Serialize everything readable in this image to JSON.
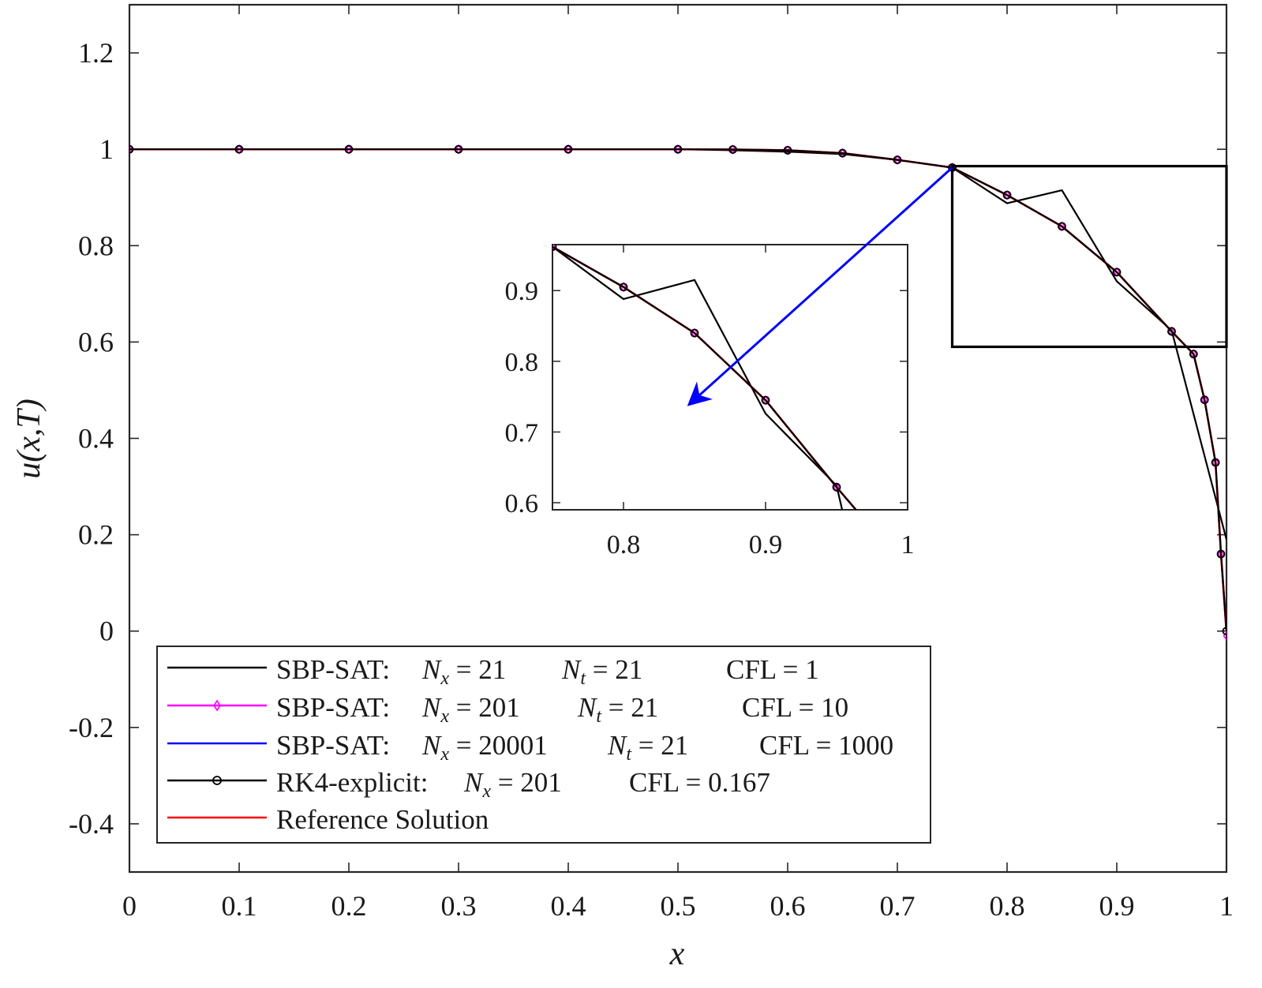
{
  "chart_data": {
    "type": "line",
    "xlabel": "x",
    "ylabel": "u(x,T)",
    "xlim": [
      0,
      1
    ],
    "ylim": [
      -0.5,
      1.3
    ],
    "xticks": [
      "0",
      "0.1",
      "0.2",
      "0.3",
      "0.4",
      "0.5",
      "0.6",
      "0.7",
      "0.8",
      "0.9",
      "1"
    ],
    "yticks": [
      "-0.4",
      "-0.2",
      "0",
      "0.2",
      "0.4",
      "0.6",
      "0.8",
      "1",
      "1.2"
    ],
    "legend_position": "bottom-left",
    "series": [
      {
        "name": "SBP-SAT: N_x = 21   N_t = 21   CFL = 1",
        "color": "#000000",
        "marker": "none",
        "x": [
          0,
          0.05,
          0.1,
          0.15,
          0.2,
          0.25,
          0.3,
          0.35,
          0.4,
          0.45,
          0.5,
          0.55,
          0.6,
          0.65,
          0.7,
          0.75,
          0.8,
          0.85,
          0.9,
          0.95,
          1.0
        ],
        "y": [
          1.0,
          1.0,
          1.0,
          1.0,
          1.0,
          1.0,
          1.0,
          1.0,
          1.0,
          1.0,
          1.0,
          0.998,
          0.995,
          0.99,
          0.978,
          0.962,
          0.888,
          0.915,
          0.726,
          0.624,
          0.19
        ]
      },
      {
        "name": "SBP-SAT: N_x = 201   N_t = 21   CFL = 10",
        "color": "#ff00ff",
        "marker": "diamond",
        "x": [
          0,
          0.1,
          0.2,
          0.3,
          0.4,
          0.5,
          0.55,
          0.6,
          0.65,
          0.7,
          0.75,
          0.8,
          0.85,
          0.9,
          0.95,
          0.97,
          0.98,
          0.99,
          0.995,
          1.0
        ],
        "y": [
          1.0,
          1.0,
          1.0,
          1.0,
          1.0,
          1.0,
          0.9995,
          0.998,
          0.992,
          0.978,
          0.962,
          0.905,
          0.84,
          0.745,
          0.622,
          0.575,
          0.48,
          0.35,
          0.16,
          -0.01
        ]
      },
      {
        "name": "SBP-SAT: N_x = 20001   N_t = 21   CFL = 1000",
        "color": "#0000ff",
        "marker": "none",
        "x": [
          0,
          0.1,
          0.2,
          0.3,
          0.4,
          0.5,
          0.55,
          0.6,
          0.65,
          0.7,
          0.75,
          0.8,
          0.85,
          0.9,
          0.95,
          0.97,
          0.98,
          0.99,
          0.995,
          1.0
        ],
        "y": [
          1.0,
          1.0,
          1.0,
          1.0,
          1.0,
          1.0,
          0.9995,
          0.998,
          0.992,
          0.978,
          0.962,
          0.905,
          0.84,
          0.745,
          0.622,
          0.575,
          0.48,
          0.35,
          0.16,
          0.0
        ]
      },
      {
        "name": "RK4-explicit: N_x = 201   CFL = 0.167",
        "color": "#000000",
        "marker": "circle",
        "x": [
          0,
          0.1,
          0.2,
          0.3,
          0.4,
          0.5,
          0.55,
          0.6,
          0.65,
          0.7,
          0.75,
          0.8,
          0.85,
          0.9,
          0.95,
          0.97,
          0.98,
          0.99,
          0.995,
          1.0
        ],
        "y": [
          1.0,
          1.0,
          1.0,
          1.0,
          1.0,
          1.0,
          0.9995,
          0.998,
          0.992,
          0.978,
          0.962,
          0.905,
          0.84,
          0.745,
          0.622,
          0.575,
          0.48,
          0.35,
          0.16,
          0.0
        ]
      },
      {
        "name": "Reference Solution",
        "color": "#ff0000",
        "marker": "none",
        "x": [
          0,
          0.1,
          0.2,
          0.3,
          0.4,
          0.5,
          0.55,
          0.6,
          0.65,
          0.7,
          0.75,
          0.8,
          0.85,
          0.9,
          0.95,
          0.97,
          0.98,
          0.99,
          0.995,
          1.0
        ],
        "y": [
          1.0,
          1.0,
          1.0,
          1.0,
          1.0,
          1.0,
          0.9995,
          0.998,
          0.992,
          0.978,
          0.962,
          0.905,
          0.84,
          0.745,
          0.622,
          0.575,
          0.48,
          0.35,
          0.16,
          0.0
        ]
      }
    ],
    "zoom_box": {
      "x": [
        0.75,
        1.0
      ],
      "y": [
        0.59,
        0.965
      ]
    },
    "inset": {
      "xlim": [
        0.75,
        1.0
      ],
      "ylim": [
        0.59,
        0.965
      ],
      "xticks": [
        "0.8",
        "0.9",
        "1"
      ],
      "yticks": [
        "0.6",
        "0.7",
        "0.8",
        "0.9"
      ],
      "x_tick_values": [
        0.8,
        0.9,
        1.0
      ],
      "y_tick_values": [
        0.6,
        0.7,
        0.8,
        0.9
      ]
    },
    "annotation": {
      "type": "arrow",
      "color": "#0000ff",
      "from": [
        0.75,
        0.962
      ],
      "to": [
        0.51,
        0.47
      ]
    }
  },
  "legend": {
    "rows": [
      {
        "prefix": "SBP-SAT: ",
        "nx": "N",
        "nx_sub": "x",
        "nx_val": " = 21",
        "nt": "N",
        "nt_sub": "t",
        "nt_val": " = 21",
        "cfl": "CFL = 1"
      },
      {
        "prefix": "SBP-SAT: ",
        "nx": "N",
        "nx_sub": "x",
        "nx_val": " = 201",
        "nt": "N",
        "nt_sub": "t",
        "nt_val": " = 21",
        "cfl": "CFL = 10"
      },
      {
        "prefix": "SBP-SAT: ",
        "nx": "N",
        "nx_sub": "x",
        "nx_val": " = 20001",
        "nt": "N",
        "nt_sub": "t",
        "nt_val": " = 21",
        "cfl": "CFL = 1000"
      },
      {
        "prefix": "RK4-explicit: ",
        "nx": "N",
        "nx_sub": "x",
        "nx_val": " = 201",
        "cfl": "CFL = 0.167"
      },
      {
        "prefix": "Reference Solution"
      }
    ]
  }
}
